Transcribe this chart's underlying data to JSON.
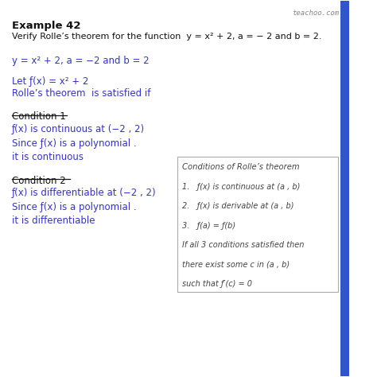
{
  "background_color": "#ffffff",
  "watermark": "teachoo.com",
  "watermark_color": "#888888",
  "accent_color": "#3333cc",
  "title_bold": "Example 42",
  "title_normal": "Verify Rolle’s theorem for the function  y = x² + 2, a = − 2 and b = 2.",
  "blue_line1": "y = x² + 2, a = −2 and b = 2",
  "blue_line2": "Let ƒ(x) = x² + 2",
  "blue_line3": "Rolle’s theorem  is satisfied if",
  "cond1_header": "Condition 1",
  "cond1_line1": "ƒ(x) is continuous at (−2 , 2)",
  "cond1_line2": "Since ƒ(x) is a polynomial .",
  "cond1_line3": "it is continuous",
  "cond2_header": "Condition 2",
  "cond2_line1": "ƒ(x) is differentiable at (−2 , 2)",
  "cond2_line2": "Since ƒ(x) is a polynomial .",
  "cond2_line3": "it is differentiable",
  "box_title": "Conditions of Rolle’s theorem",
  "box_line1": "1.   ƒ(x) is continuous at (a , b)",
  "box_line2": "2.   ƒ(x) is derivable at (a , b)",
  "box_line3": "3.   ƒ(a) = ƒ(b)",
  "box_line4": "If all 3 conditions satisfied then",
  "box_line5": "there exist some c in (a , b)",
  "box_line6": "such that ƒ′(c) = 0",
  "right_accent_color": "#3355cc",
  "fig_width": 4.74,
  "fig_height": 4.74,
  "dpi": 100
}
